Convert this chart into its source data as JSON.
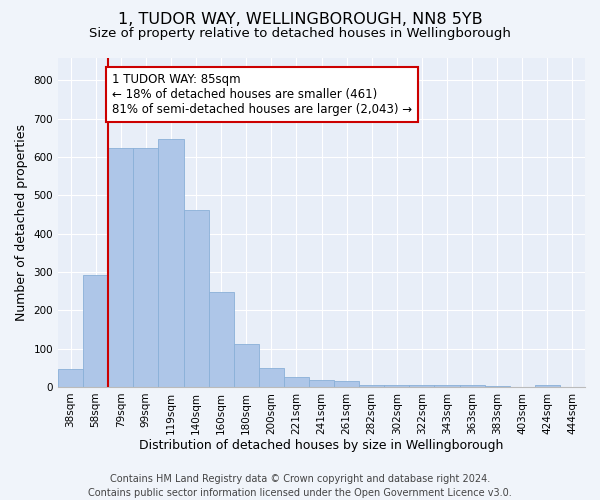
{
  "title_line1": "1, TUDOR WAY, WELLINGBOROUGH, NN8 5YB",
  "title_line2": "Size of property relative to detached houses in Wellingborough",
  "xlabel": "Distribution of detached houses by size in Wellingborough",
  "ylabel": "Number of detached properties",
  "footer": "Contains HM Land Registry data © Crown copyright and database right 2024.\nContains public sector information licensed under the Open Government Licence v3.0.",
  "categories": [
    "38sqm",
    "58sqm",
    "79sqm",
    "99sqm",
    "119sqm",
    "140sqm",
    "160sqm",
    "180sqm",
    "200sqm",
    "221sqm",
    "241sqm",
    "261sqm",
    "282sqm",
    "302sqm",
    "322sqm",
    "343sqm",
    "363sqm",
    "383sqm",
    "403sqm",
    "424sqm",
    "444sqm"
  ],
  "values": [
    48,
    293,
    624,
    625,
    648,
    461,
    249,
    112,
    50,
    27,
    17,
    15,
    5,
    4,
    6,
    4,
    4,
    3,
    1,
    4,
    1
  ],
  "bar_color": "#aec6e8",
  "bar_edge_color": "#8ab0d8",
  "bg_color": "#e8eef8",
  "fig_color": "#f0f4fa",
  "grid_color": "#ffffff",
  "vline_color": "#cc0000",
  "vline_x_index": 2,
  "annotation_text": "1 TUDOR WAY: 85sqm\n← 18% of detached houses are smaller (461)\n81% of semi-detached houses are larger (2,043) →",
  "annotation_box_color": "#cc0000",
  "ylim": [
    0,
    860
  ],
  "yticks": [
    0,
    100,
    200,
    300,
    400,
    500,
    600,
    700,
    800
  ],
  "title_fontsize": 11.5,
  "subtitle_fontsize": 9.5,
  "ylabel_fontsize": 9,
  "xlabel_fontsize": 9,
  "tick_fontsize": 7.5,
  "annotation_fontsize": 8.5,
  "footer_fontsize": 7
}
